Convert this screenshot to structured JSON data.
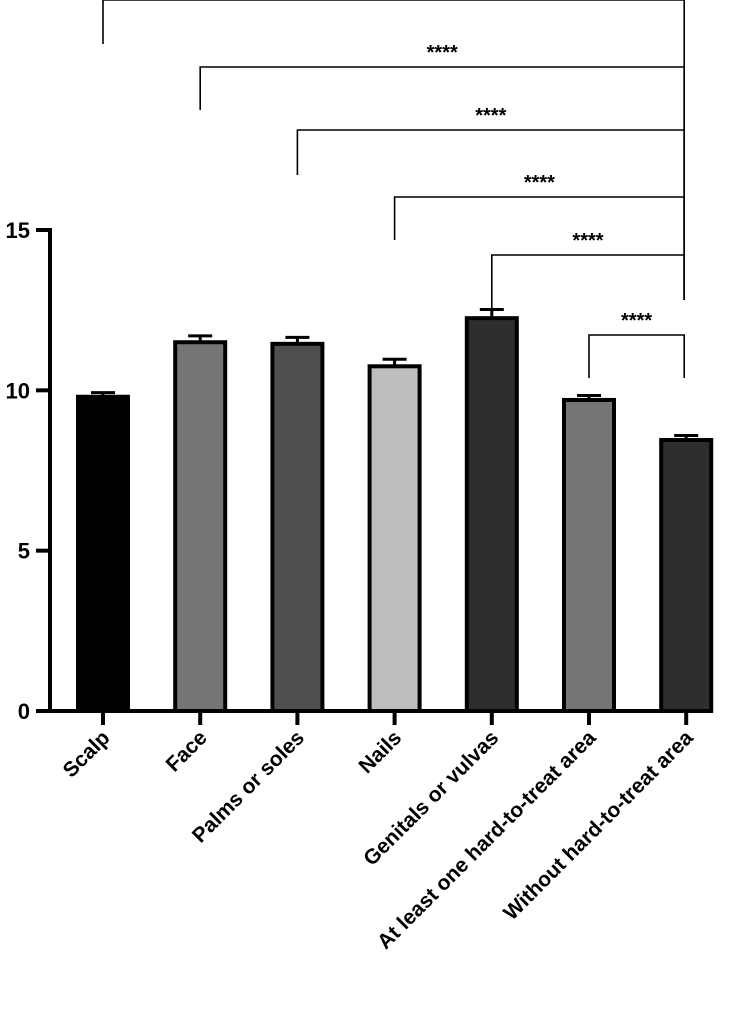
{
  "chart_data": {
    "type": "bar",
    "title": "",
    "xlabel": "",
    "ylabel": "",
    "ylim": [
      0,
      15
    ],
    "yticks": [
      0,
      5,
      10,
      15
    ],
    "grid": false,
    "categories": [
      "Scalp",
      "Face",
      "Palms or soles",
      "Nails",
      "Genitals or vulvas",
      "At least one hard-to-treat area",
      "Without hard-to-treat area"
    ],
    "values": [
      9.8,
      11.5,
      11.45,
      10.75,
      12.25,
      9.7,
      8.45
    ],
    "errors": [
      0.13,
      0.2,
      0.2,
      0.22,
      0.27,
      0.14,
      0.14
    ],
    "bar_colors": [
      "#000000",
      "#757575",
      "#4f4f4f",
      "#bdbdbd",
      "#2e2e2e",
      "#757575",
      "#2e2e2e"
    ],
    "comparisons": [
      {
        "from": 0,
        "to": 6,
        "label": ""
      },
      {
        "from": 1,
        "to": 6,
        "label": "****"
      },
      {
        "from": 2,
        "to": 6,
        "label": "****"
      },
      {
        "from": 3,
        "to": 6,
        "label": "****"
      },
      {
        "from": 4,
        "to": 6,
        "label": "****"
      },
      {
        "from": 5,
        "to": 6,
        "label": "****"
      }
    ]
  }
}
